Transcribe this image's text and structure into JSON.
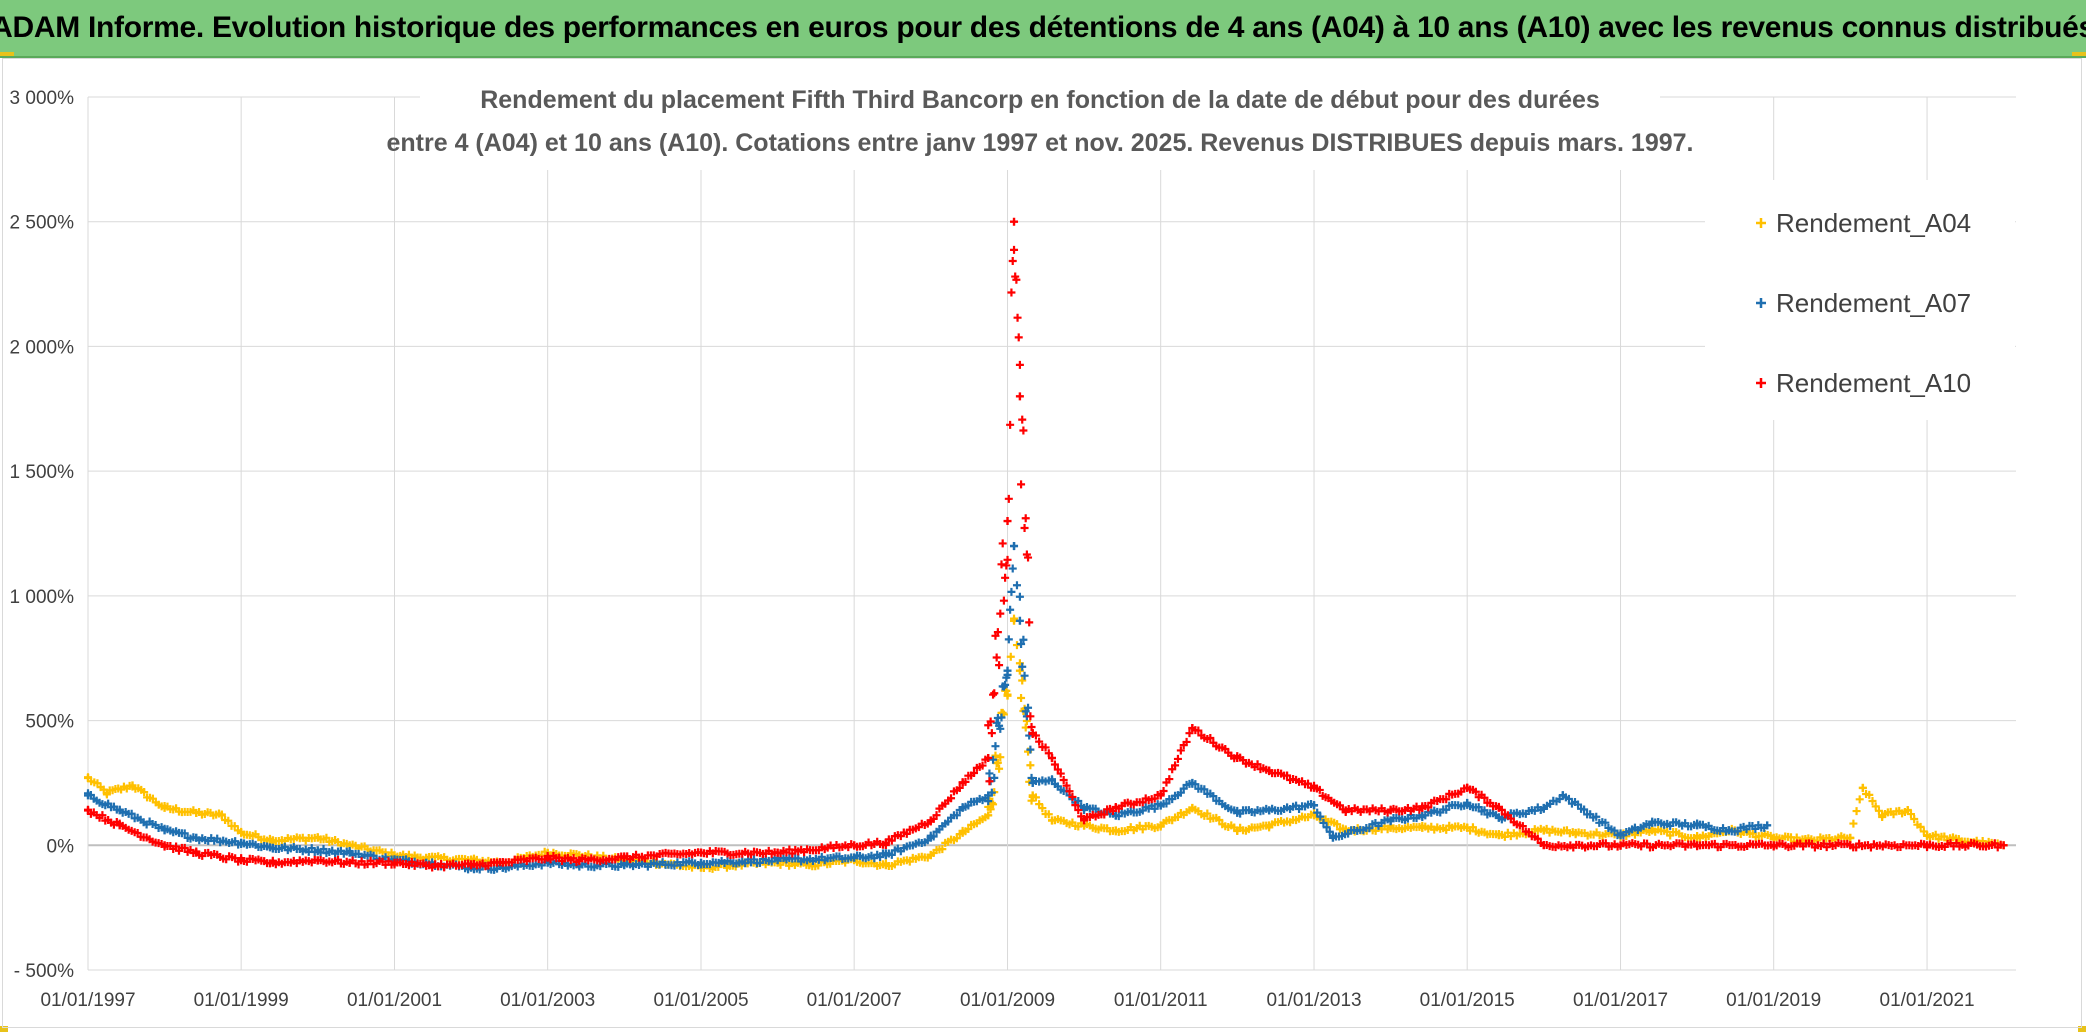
{
  "banner": {
    "title": "ADAM Informe. Evolution historique des performances en euros pour des détentions de 4 ans (A04) à 10 ans (A10) avec les revenus connus distribués"
  },
  "colors": {
    "A04": "#ffc000",
    "A07": "#1f6fb0",
    "A10": "#ff0000",
    "banner": "#7dc97d"
  },
  "chart_data": {
    "type": "scatter",
    "title": [
      "Rendement du placement Fifth Third Bancorp en fonction de la date de début pour des durées",
      "entre 4 (A04) et 10 ans (A10). Cotations entre janv 1997 et nov. 2025. Revenus DISTRIBUES depuis mars. 1997."
    ],
    "xlabel": "",
    "ylabel": "",
    "ylim": [
      -500,
      3000
    ],
    "xlim": [
      "1997-01-01",
      "2022-03-01"
    ],
    "y_ticks": [
      -500,
      0,
      500,
      1000,
      1500,
      2000,
      2500,
      3000
    ],
    "y_tick_labels": [
      "- 500%",
      "0%",
      "500%",
      "1 000%",
      "1 500%",
      "2 000%",
      "2 500%",
      "3 000%"
    ],
    "x_ticks": [
      "1997-01-01",
      "1999-01-01",
      "2001-01-01",
      "2003-01-01",
      "2005-01-01",
      "2007-01-01",
      "2009-01-01",
      "2011-01-01",
      "2013-01-01",
      "2015-01-01",
      "2017-01-01",
      "2019-01-01",
      "2021-01-01"
    ],
    "x_tick_labels": [
      "01/01/1997",
      "01/01/1999",
      "01/01/2001",
      "01/01/2003",
      "01/01/2005",
      "01/01/2007",
      "01/01/2009",
      "01/01/2011",
      "01/01/2013",
      "01/01/2015",
      "01/01/2017",
      "01/01/2019",
      "01/01/2021"
    ],
    "grid": true,
    "legend_position": "top-right",
    "marker": "+",
    "series": [
      {
        "name": "Rendement_A04",
        "color": "#ffc000",
        "points": [
          [
            "1997-01-01",
            270
          ],
          [
            "1997-04-01",
            210
          ],
          [
            "1997-08-01",
            240
          ],
          [
            "1998-01-01",
            150
          ],
          [
            "1998-06-01",
            130
          ],
          [
            "1998-10-01",
            120
          ],
          [
            "1999-01-01",
            50
          ],
          [
            "1999-06-01",
            20
          ],
          [
            "2000-01-01",
            30
          ],
          [
            "2000-06-01",
            0
          ],
          [
            "2001-01-01",
            -40
          ],
          [
            "2001-06-01",
            -50
          ],
          [
            "2002-01-01",
            -60
          ],
          [
            "2002-06-01",
            -70
          ],
          [
            "2003-01-01",
            -30
          ],
          [
            "2003-06-01",
            -40
          ],
          [
            "2004-01-01",
            -60
          ],
          [
            "2004-06-01",
            -70
          ],
          [
            "2005-01-01",
            -90
          ],
          [
            "2005-06-01",
            -80
          ],
          [
            "2006-01-01",
            -70
          ],
          [
            "2006-06-01",
            -80
          ],
          [
            "2007-01-01",
            -60
          ],
          [
            "2007-06-01",
            -80
          ],
          [
            "2008-01-01",
            -40
          ],
          [
            "2008-06-01",
            50
          ],
          [
            "2008-10-01",
            120
          ],
          [
            "2009-01-01",
            600
          ],
          [
            "2009-02-01",
            900
          ],
          [
            "2009-03-01",
            700
          ],
          [
            "2009-05-01",
            200
          ],
          [
            "2009-08-01",
            100
          ],
          [
            "2010-01-01",
            80
          ],
          [
            "2010-06-01",
            60
          ],
          [
            "2011-01-01",
            80
          ],
          [
            "2011-06-01",
            150
          ],
          [
            "2012-01-01",
            60
          ],
          [
            "2012-06-01",
            80
          ],
          [
            "2013-01-01",
            120
          ],
          [
            "2013-06-01",
            60
          ],
          [
            "2014-01-01",
            70
          ],
          [
            "2014-06-01",
            70
          ],
          [
            "2015-01-01",
            70
          ],
          [
            "2015-06-01",
            40
          ],
          [
            "2016-01-01",
            60
          ],
          [
            "2016-06-01",
            50
          ],
          [
            "2017-01-01",
            40
          ],
          [
            "2017-06-01",
            60
          ],
          [
            "2018-01-01",
            30
          ],
          [
            "2018-06-01",
            60
          ],
          [
            "2019-01-01",
            30
          ],
          [
            "2019-06-01",
            20
          ],
          [
            "2020-01-01",
            30
          ],
          [
            "2020-03-01",
            230
          ],
          [
            "2020-06-01",
            120
          ],
          [
            "2020-10-01",
            140
          ],
          [
            "2021-01-01",
            40
          ],
          [
            "2021-06-01",
            20
          ],
          [
            "2022-01-01",
            0
          ]
        ]
      },
      {
        "name": "Rendement_A07",
        "color": "#1f6fb0",
        "points": [
          [
            "1997-01-01",
            200
          ],
          [
            "1997-06-01",
            140
          ],
          [
            "1998-01-01",
            60
          ],
          [
            "1998-06-01",
            30
          ],
          [
            "1999-01-01",
            10
          ],
          [
            "1999-06-01",
            -10
          ],
          [
            "2000-01-01",
            -20
          ],
          [
            "2000-06-01",
            -30
          ],
          [
            "2001-01-01",
            -60
          ],
          [
            "2001-06-01",
            -70
          ],
          [
            "2002-01-01",
            -90
          ],
          [
            "2002-06-01",
            -90
          ],
          [
            "2003-01-01",
            -70
          ],
          [
            "2003-06-01",
            -80
          ],
          [
            "2004-01-01",
            -80
          ],
          [
            "2005-01-01",
            -70
          ],
          [
            "2006-01-01",
            -60
          ],
          [
            "2007-01-01",
            -50
          ],
          [
            "2007-06-01",
            -40
          ],
          [
            "2008-01-01",
            30
          ],
          [
            "2008-06-01",
            150
          ],
          [
            "2008-10-01",
            200
          ],
          [
            "2009-01-01",
            700
          ],
          [
            "2009-02-01",
            1200
          ],
          [
            "2009-03-01",
            900
          ],
          [
            "2009-05-01",
            250
          ],
          [
            "2009-08-01",
            260
          ],
          [
            "2010-01-01",
            150
          ],
          [
            "2010-06-01",
            120
          ],
          [
            "2011-01-01",
            160
          ],
          [
            "2011-06-01",
            250
          ],
          [
            "2012-01-01",
            130
          ],
          [
            "2012-06-01",
            140
          ],
          [
            "2013-01-01",
            160
          ],
          [
            "2013-04-01",
            30
          ],
          [
            "2014-01-01",
            100
          ],
          [
            "2014-06-01",
            120
          ],
          [
            "2015-01-01",
            170
          ],
          [
            "2015-06-01",
            110
          ],
          [
            "2016-01-01",
            150
          ],
          [
            "2016-04-01",
            200
          ],
          [
            "2017-01-01",
            40
          ],
          [
            "2017-06-01",
            90
          ],
          [
            "2018-01-01",
            80
          ],
          [
            "2018-06-01",
            60
          ],
          [
            "2018-12-01",
            80
          ]
        ]
      },
      {
        "name": "Rendement_A10",
        "color": "#ff0000",
        "points": [
          [
            "1997-01-01",
            140
          ],
          [
            "1997-06-01",
            80
          ],
          [
            "1998-01-01",
            0
          ],
          [
            "1998-06-01",
            -30
          ],
          [
            "1999-01-01",
            -60
          ],
          [
            "1999-06-01",
            -70
          ],
          [
            "2000-01-01",
            -60
          ],
          [
            "2000-06-01",
            -70
          ],
          [
            "2001-01-01",
            -70
          ],
          [
            "2001-06-01",
            -80
          ],
          [
            "2002-01-01",
            -80
          ],
          [
            "2002-06-01",
            -70
          ],
          [
            "2003-01-01",
            -50
          ],
          [
            "2003-06-01",
            -60
          ],
          [
            "2004-01-01",
            -50
          ],
          [
            "2005-01-01",
            -30
          ],
          [
            "2006-01-01",
            -30
          ],
          [
            "2007-01-01",
            0
          ],
          [
            "2007-06-01",
            10
          ],
          [
            "2008-01-01",
            100
          ],
          [
            "2008-06-01",
            250
          ],
          [
            "2008-10-01",
            350
          ],
          [
            "2009-01-01",
            1300
          ],
          [
            "2009-02-01",
            2500
          ],
          [
            "2009-03-01",
            1800
          ],
          [
            "2009-05-01",
            450
          ],
          [
            "2009-08-01",
            350
          ],
          [
            "2010-01-01",
            100
          ],
          [
            "2010-06-01",
            150
          ],
          [
            "2011-01-01",
            200
          ],
          [
            "2011-06-01",
            470
          ],
          [
            "2012-01-01",
            350
          ],
          [
            "2012-06-01",
            300
          ],
          [
            "2013-01-01",
            230
          ],
          [
            "2013-06-01",
            140
          ],
          [
            "2014-01-01",
            140
          ],
          [
            "2014-06-01",
            150
          ],
          [
            "2015-01-01",
            230
          ],
          [
            "2015-06-01",
            150
          ],
          [
            "2016-01-01",
            0
          ],
          [
            "2017-01-01",
            0
          ],
          [
            "2018-01-01",
            0
          ],
          [
            "2019-01-01",
            0
          ],
          [
            "2020-01-01",
            0
          ],
          [
            "2021-01-01",
            0
          ],
          [
            "2022-01-01",
            0
          ]
        ]
      }
    ]
  }
}
